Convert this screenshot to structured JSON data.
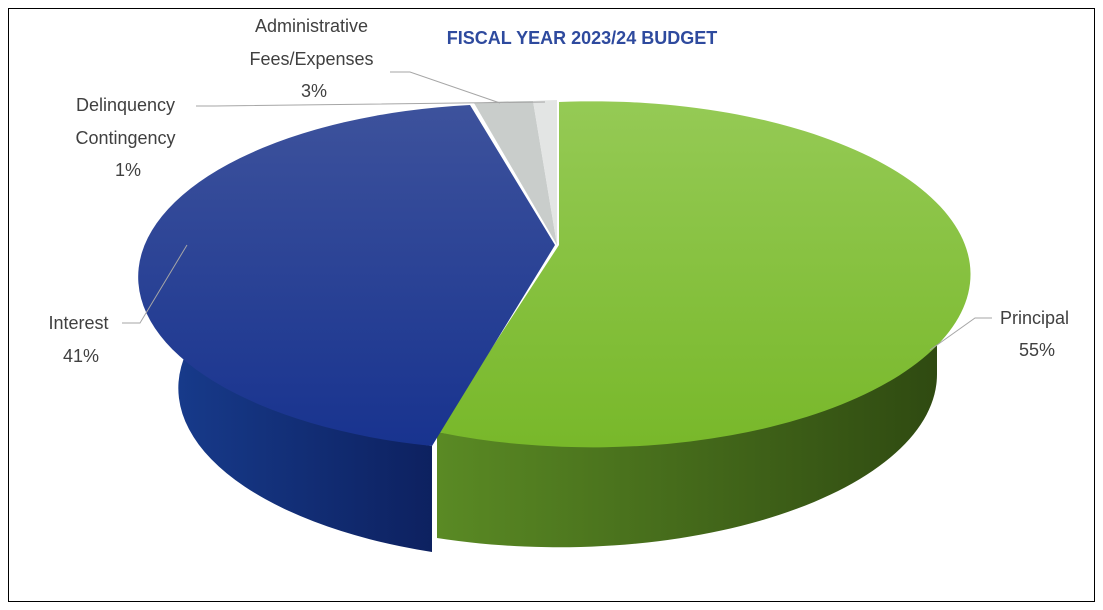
{
  "chart_data": {
    "type": "pie",
    "style": "3d-exploded-slices",
    "title": "FISCAL YEAR 2023/24 BUDGET",
    "slices": [
      {
        "name": "Principal",
        "value": 55,
        "label": "55%",
        "color": "#7cbb2e"
      },
      {
        "name": "Interest",
        "value": 41,
        "label": "41%",
        "color": "#1e3a94"
      },
      {
        "name": "Administrative Fees/Expenses",
        "value": 3,
        "label": "3%",
        "color": "#c9cdcb"
      },
      {
        "name": "Delinquency Contingency",
        "value": 1,
        "label": "1%",
        "color": "#e3e5e4"
      }
    ],
    "legend": "none",
    "title_color": "#2e4a9e"
  }
}
